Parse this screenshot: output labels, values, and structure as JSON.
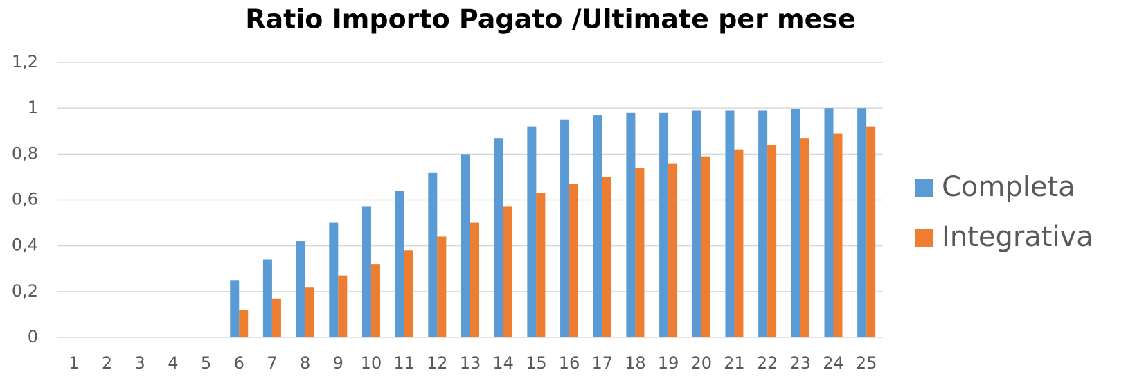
{
  "chart_data": {
    "type": "bar",
    "title": "Ratio Importo Pagato /Ultimate per mese",
    "categories": [
      "1",
      "2",
      "3",
      "4",
      "5",
      "6",
      "7",
      "8",
      "9",
      "10",
      "11",
      "12",
      "13",
      "14",
      "15",
      "16",
      "17",
      "18",
      "19",
      "20",
      "21",
      "22",
      "23",
      "24",
      "25"
    ],
    "series": [
      {
        "name": "Completa",
        "color": "#5b9bd5",
        "values": [
          0,
          0,
          0,
          0,
          0,
          0.25,
          0.34,
          0.42,
          0.5,
          0.57,
          0.64,
          0.72,
          0.8,
          0.87,
          0.92,
          0.95,
          0.97,
          0.98,
          0.98,
          0.99,
          0.99,
          0.99,
          0.995,
          1,
          1
        ]
      },
      {
        "name": "Integrativa",
        "color": "#ed7d31",
        "values": [
          0,
          0,
          0,
          0,
          0,
          0.12,
          0.17,
          0.22,
          0.27,
          0.32,
          0.38,
          0.44,
          0.5,
          0.57,
          0.63,
          0.67,
          0.7,
          0.74,
          0.76,
          0.79,
          0.82,
          0.84,
          0.87,
          0.89,
          0.92
        ]
      }
    ],
    "ylim": [
      0,
      1.2
    ],
    "yticks": [
      0,
      {
        "value": 0.2,
        "label": "0,2"
      },
      {
        "value": 0.4,
        "label": "0,4"
      },
      {
        "value": 0.6,
        "label": "0,6"
      },
      {
        "value": 0.8,
        "label": "0,8"
      },
      1,
      {
        "value": 1.2,
        "label": "1,2"
      }
    ],
    "grid": true,
    "legend": "right"
  }
}
